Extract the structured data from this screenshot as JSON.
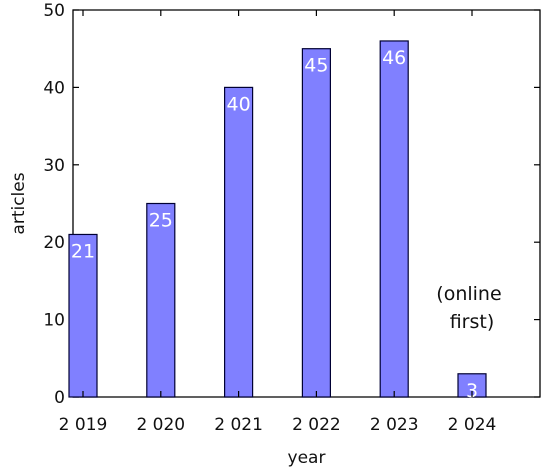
{
  "chart_data": {
    "type": "bar",
    "categories": [
      "2 019",
      "2 020",
      "2 021",
      "2 022",
      "2 023",
      "2 024"
    ],
    "values": [
      21,
      25,
      40,
      45,
      46,
      3
    ],
    "data_labels": [
      "21",
      "25",
      "40",
      "45",
      "46",
      "3"
    ],
    "xlabel": "year",
    "ylabel": "articles",
    "ylim": [
      0,
      50
    ],
    "yticks": [
      "0",
      "10",
      "20",
      "30",
      "40",
      "50"
    ],
    "ytick_values": [
      0,
      10,
      20,
      30,
      40,
      50
    ],
    "annotation": {
      "category_index": 5,
      "lines": [
        "(online",
        "first)"
      ]
    },
    "grid": false,
    "legend": "none",
    "colors": {
      "bar_fill": "#8080ff",
      "bar_stroke": "#000033",
      "axis": "#000000"
    }
  }
}
